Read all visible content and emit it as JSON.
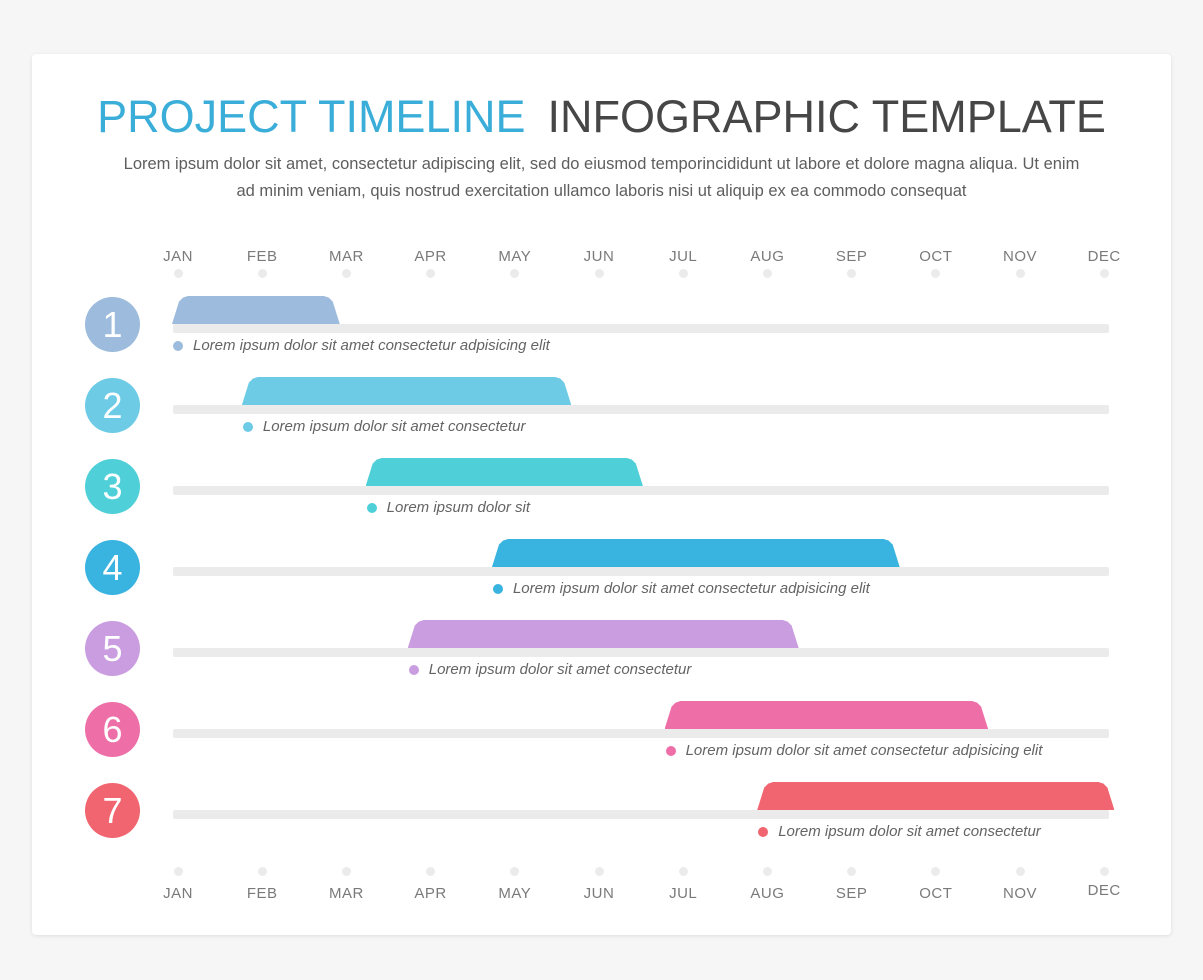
{
  "header": {
    "title_part1": "PROJECT TIMELINE",
    "title_part2": "INFOGRAPHIC TEMPLATE",
    "subtitle": "Lorem ipsum dolor sit amet, consectetur adipiscing elit, sed do eiusmod temporincididunt ut labore et dolore magna aliqua. Ut enim ad minim veniam, quis nostrud exercitation ullamco laboris nisi ut aliquip ex ea commodo consequat"
  },
  "months": [
    "JAN",
    "FEB",
    "MAR",
    "APR",
    "MAY",
    "JUN",
    "JUL",
    "AUG",
    "SEP",
    "OCT",
    "NOV",
    "DEC"
  ],
  "tasks": [
    {
      "number": "1",
      "color": "#9dbbdc",
      "start_month": 0,
      "end_month": 1.85,
      "label": "Lorem ipsum dolor sit amet consectetur adpisicing elit"
    },
    {
      "number": "2",
      "color": "#6dcbe6",
      "start_month": 0.83,
      "end_month": 4.6,
      "label": "Lorem ipsum dolor sit amet consectetur"
    },
    {
      "number": "3",
      "color": "#4fd0d8",
      "start_month": 2.3,
      "end_month": 5.45,
      "label": "Lorem ipsum dolor sit"
    },
    {
      "number": "4",
      "color": "#39b3df",
      "start_month": 3.8,
      "end_month": 8.5,
      "label": "Lorem ipsum dolor sit amet consectetur adpisicing elit"
    },
    {
      "number": "5",
      "color": "#c99ddf",
      "start_month": 2.8,
      "end_month": 7.3,
      "label": "Lorem ipsum dolor sit amet consectetur"
    },
    {
      "number": "6",
      "color": "#ee6fa8",
      "start_month": 5.85,
      "end_month": 9.55,
      "label": "Lorem ipsum dolor sit amet consectetur adpisicing elit"
    },
    {
      "number": "7",
      "color": "#f06570",
      "start_month": 6.95,
      "end_month": 11.05,
      "label": "Lorem ipsum dolor sit amet consectetur"
    }
  ]
}
